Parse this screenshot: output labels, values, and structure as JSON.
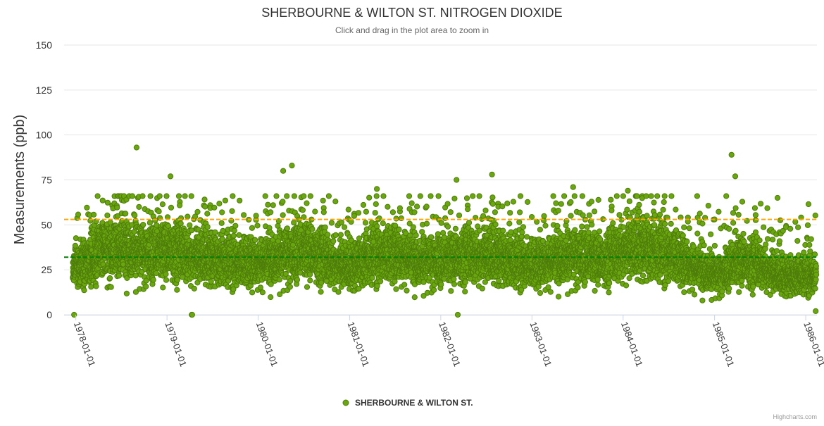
{
  "chart_data": {
    "type": "scatter",
    "title": "SHERBOURNE & WILTON ST. NITROGEN DIOXIDE",
    "subtitle": "Click and drag in the plot area to zoom in",
    "ylabel": "Measurements (ppb)",
    "xlabel": "",
    "ylim": [
      0,
      150
    ],
    "y_ticks": [
      0,
      25,
      50,
      75,
      100,
      125,
      150
    ],
    "x_range": [
      "1977-11-15",
      "1986-02-15"
    ],
    "x_ticks": [
      "1978-01-01",
      "1979-01-01",
      "1980-01-01",
      "1981-01-01",
      "1982-01-01",
      "1983-01-01",
      "1984-01-01",
      "1985-01-01",
      "1986-01-01"
    ],
    "grid": true,
    "legend_position": "bottom-center",
    "series": [
      {
        "name": "SHERBOURNE & WILTON ST.",
        "marker": "circle",
        "color": "#6aa70f",
        "marker_edge": "#4e7d0a",
        "monthly_center": [
          {
            "x": "1978-01",
            "y": 27
          },
          {
            "x": "1978-04",
            "y": 36
          },
          {
            "x": "1978-07",
            "y": 38
          },
          {
            "x": "1978-10",
            "y": 34
          },
          {
            "x": "1979-01",
            "y": 36
          },
          {
            "x": "1979-04",
            "y": 33
          },
          {
            "x": "1979-07",
            "y": 30
          },
          {
            "x": "1979-10",
            "y": 29
          },
          {
            "x": "1980-01",
            "y": 30
          },
          {
            "x": "1980-04",
            "y": 33
          },
          {
            "x": "1980-07",
            "y": 36
          },
          {
            "x": "1980-10",
            "y": 30
          },
          {
            "x": "1981-01",
            "y": 26
          },
          {
            "x": "1981-04",
            "y": 33
          },
          {
            "x": "1981-07",
            "y": 34
          },
          {
            "x": "1981-10",
            "y": 30
          },
          {
            "x": "1982-01",
            "y": 30
          },
          {
            "x": "1982-04",
            "y": 33
          },
          {
            "x": "1982-07",
            "y": 33
          },
          {
            "x": "1982-10",
            "y": 29
          },
          {
            "x": "1983-01",
            "y": 28
          },
          {
            "x": "1983-04",
            "y": 32
          },
          {
            "x": "1983-07",
            "y": 33
          },
          {
            "x": "1983-10",
            "y": 30
          },
          {
            "x": "1984-01",
            "y": 37
          },
          {
            "x": "1984-04",
            "y": 36
          },
          {
            "x": "1984-07",
            "y": 33
          },
          {
            "x": "1984-10",
            "y": 27
          },
          {
            "x": "1985-01",
            "y": 22
          },
          {
            "x": "1985-04",
            "y": 30
          },
          {
            "x": "1985-07",
            "y": 27
          },
          {
            "x": "1985-10",
            "y": 20
          },
          {
            "x": "1986-01",
            "y": 22
          }
        ],
        "highlighted_points": [
          {
            "x": "1977-12-25",
            "y": 0
          },
          {
            "x": "1978-09-01",
            "y": 93
          },
          {
            "x": "1979-01-15",
            "y": 77
          },
          {
            "x": "1979-04-10",
            "y": 0
          },
          {
            "x": "1979-04-12",
            "y": 0
          },
          {
            "x": "1980-04-10",
            "y": 80
          },
          {
            "x": "1980-05-15",
            "y": 83
          },
          {
            "x": "1981-04-20",
            "y": 70
          },
          {
            "x": "1982-03-05",
            "y": 75
          },
          {
            "x": "1982-03-10",
            "y": 0
          },
          {
            "x": "1982-07-25",
            "y": 78
          },
          {
            "x": "1983-06-15",
            "y": 71
          },
          {
            "x": "1984-01-20",
            "y": 69
          },
          {
            "x": "1985-03-10",
            "y": 89
          },
          {
            "x": "1985-03-25",
            "y": 77
          },
          {
            "x": "1985-09-10",
            "y": 65
          },
          {
            "x": "1986-02-10",
            "y": 2
          }
        ]
      }
    ],
    "reference_lines": [
      {
        "name": "upper-reference",
        "value": 53,
        "color": "#ffa500",
        "style": "dashed"
      },
      {
        "name": "mean-reference",
        "value": 32,
        "color": "#008000",
        "style": "dashed"
      }
    ]
  },
  "legend": {
    "label": "SHERBOURNE & WILTON ST."
  },
  "credits": "Highcharts.com"
}
